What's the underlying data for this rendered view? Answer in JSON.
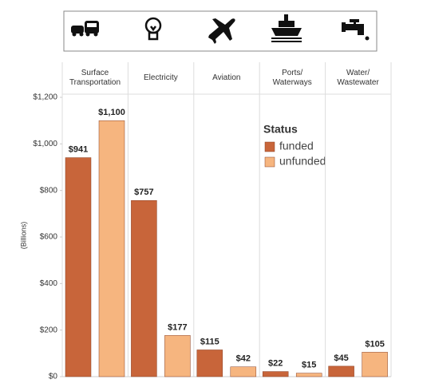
{
  "chart_data": {
    "type": "bar",
    "categories": [
      "Surface\nTransportation",
      "Electricity",
      "Aviation",
      "Ports/\nWaterways",
      "Water/\nWastewater"
    ],
    "series": [
      {
        "name": "funded",
        "color": "#c8653a",
        "values": [
          941,
          757,
          115,
          22,
          45
        ],
        "value_labels": [
          "$941",
          "$757",
          "$115",
          "$22",
          "$45"
        ]
      },
      {
        "name": "unfunded",
        "color": "#f6b57f",
        "values": [
          1100,
          177,
          42,
          15,
          105
        ],
        "value_labels": [
          "$1,100",
          "$177",
          "$42",
          "$15",
          "$105"
        ]
      }
    ],
    "y_label": "(Billions)",
    "legend_title": "Status",
    "legend_position": "upper right",
    "ylim": [
      0,
      1200
    ],
    "yticks": [
      {
        "value": 0,
        "label": "$0"
      },
      {
        "value": 200,
        "label": "$200"
      },
      {
        "value": 400,
        "label": "$400"
      },
      {
        "value": 600,
        "label": "$600"
      },
      {
        "value": 800,
        "label": "$800"
      },
      {
        "value": 1000,
        "label": "$1,000"
      },
      {
        "value": 1200,
        "label": "$1,200"
      }
    ],
    "grid": false
  }
}
